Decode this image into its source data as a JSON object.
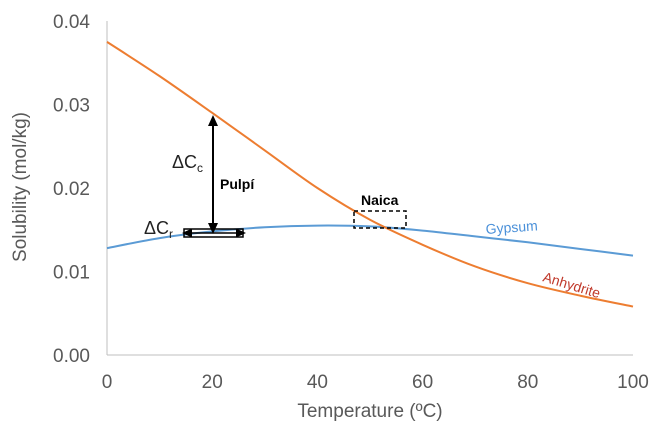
{
  "chart_data": {
    "type": "line",
    "xlabel": "Temperature (ºC)",
    "ylabel": "Solubility (mol/kg)",
    "xlim": [
      0,
      100
    ],
    "ylim": [
      0,
      0.04
    ],
    "x_ticks": [
      "0",
      "20",
      "40",
      "60",
      "80",
      "100"
    ],
    "y_ticks": [
      "0.00",
      "0.01",
      "0.02",
      "0.03",
      "0.04"
    ],
    "grid": false,
    "series": [
      {
        "name": "Gypsum",
        "color": "#5b9bd5",
        "label_color": "#4a90d9",
        "x": [
          0,
          10,
          20,
          30,
          40,
          50,
          60,
          70,
          80,
          90,
          100
        ],
        "y": [
          0.0128,
          0.014,
          0.0148,
          0.0153,
          0.0155,
          0.0154,
          0.0149,
          0.0142,
          0.0135,
          0.0127,
          0.0119
        ]
      },
      {
        "name": "Anhydrite",
        "color": "#ed7d31",
        "label_color": "#c0392b",
        "x": [
          0,
          10,
          20,
          30,
          40,
          50,
          60,
          70,
          80,
          90,
          100
        ],
        "y": [
          0.0375,
          0.0334,
          0.029,
          0.0245,
          0.02,
          0.0162,
          0.0132,
          0.0106,
          0.0086,
          0.0071,
          0.0058
        ]
      }
    ],
    "annotations": {
      "pulpi": "Pulpí",
      "naica": "Naica",
      "delta_c_main": "ΔC",
      "delta_c_sub": "c",
      "delta_r_main": "ΔC",
      "delta_r_sub": "r"
    }
  }
}
